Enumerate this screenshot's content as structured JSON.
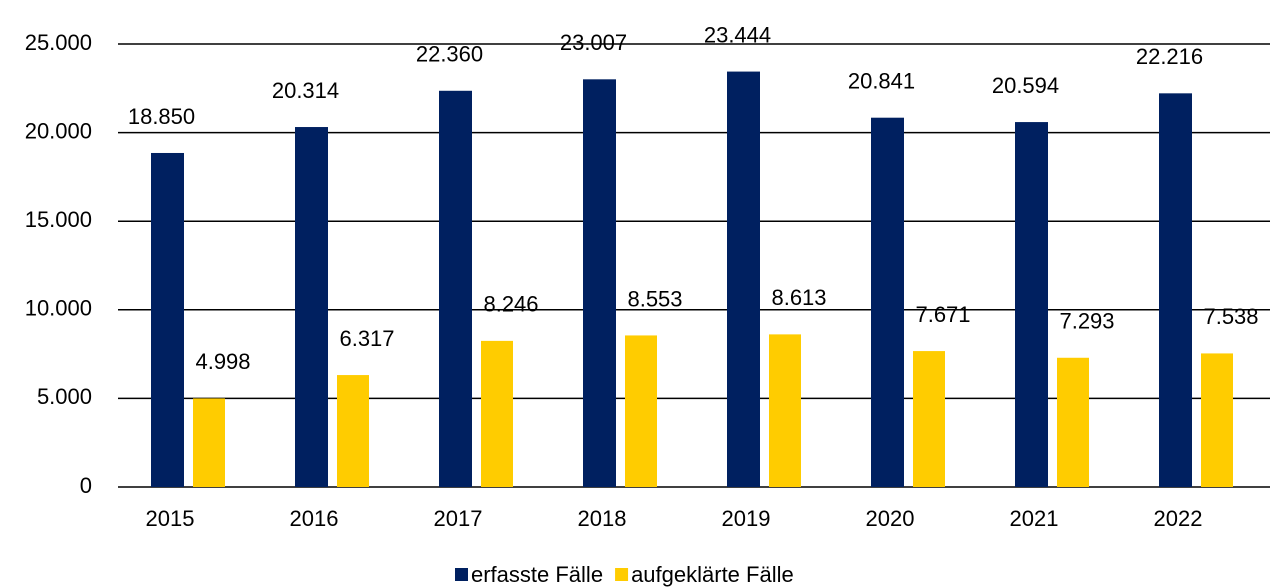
{
  "chart_data": {
    "type": "bar",
    "categories": [
      "2015",
      "2016",
      "2017",
      "2018",
      "2019",
      "2020",
      "2021",
      "2022"
    ],
    "series": [
      {
        "name": "erfasste Fälle",
        "color": "#002060",
        "values": [
          18850,
          20314,
          22360,
          23007,
          23444,
          20841,
          20594,
          22216
        ],
        "value_labels": [
          "18.850",
          "20.314",
          "22.360",
          "23.007",
          "23.444",
          "20.841",
          "20.594",
          "22.216"
        ]
      },
      {
        "name": "aufgeklärte Fälle",
        "color": "#FFCC00",
        "values": [
          4998,
          6317,
          8246,
          8553,
          8613,
          7671,
          7293,
          7538
        ],
        "value_labels": [
          "4.998",
          "6.317",
          "8.246",
          "8.553",
          "8.613",
          "7.671",
          "7.293",
          "7.538"
        ]
      }
    ],
    "ylim": [
      0,
      25000
    ],
    "yticks": [
      0,
      {
        "value": 5000,
        "label": "5.000"
      },
      {
        "value": 10000,
        "label": "10.000"
      },
      {
        "value": 15000,
        "label": "15.000"
      },
      {
        "value": 20000,
        "label": "20.000"
      },
      {
        "value": 25000,
        "label": "25.000"
      }
    ],
    "grid": true,
    "legend": "bottom"
  }
}
